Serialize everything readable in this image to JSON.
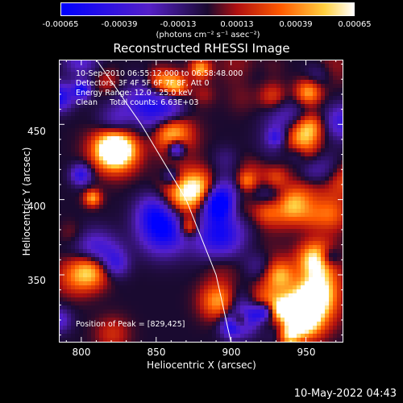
{
  "colorbar": {
    "ticks": [
      "-0.00065",
      "-0.00039",
      "-0.00013",
      "0.00013",
      "0.00039",
      "0.00065"
    ],
    "unit_label": "(photons cm⁻² s⁻¹ asec⁻²)"
  },
  "chart_data": {
    "type": "heatmap",
    "title": "Reconstructed RHESSI Image",
    "xlabel": "Heliocentric X (arcsec)",
    "ylabel": "Heliocentric Y (arcsec)",
    "xlim": [
      785,
      975
    ],
    "ylim": [
      305,
      493
    ],
    "x_ticks": [
      "800",
      "850",
      "900",
      "950"
    ],
    "y_ticks": [
      "350",
      "400",
      "450"
    ],
    "value_range": [
      -0.00065,
      0.00065
    ],
    "peak": [
      829,
      425
    ],
    "limb_curve": [
      [
        810,
        493
      ],
      [
        840,
        450
      ],
      [
        870,
        400
      ],
      [
        890,
        350
      ],
      [
        900,
        305
      ]
    ],
    "annotations": [
      "10-Sep-2010 06:55:12.000 to 06:58:48.000",
      "Detectors: 3F 4F 5F 6F 7F 8F, Att 0",
      "Energy Range: 12.0 - 25.0 keV",
      "Clean     Total counts: 6.63E+03"
    ],
    "peak_label": "Position of Peak = [829,425]"
  },
  "footer": {
    "timestamp": "10-May-2022 04:43"
  }
}
